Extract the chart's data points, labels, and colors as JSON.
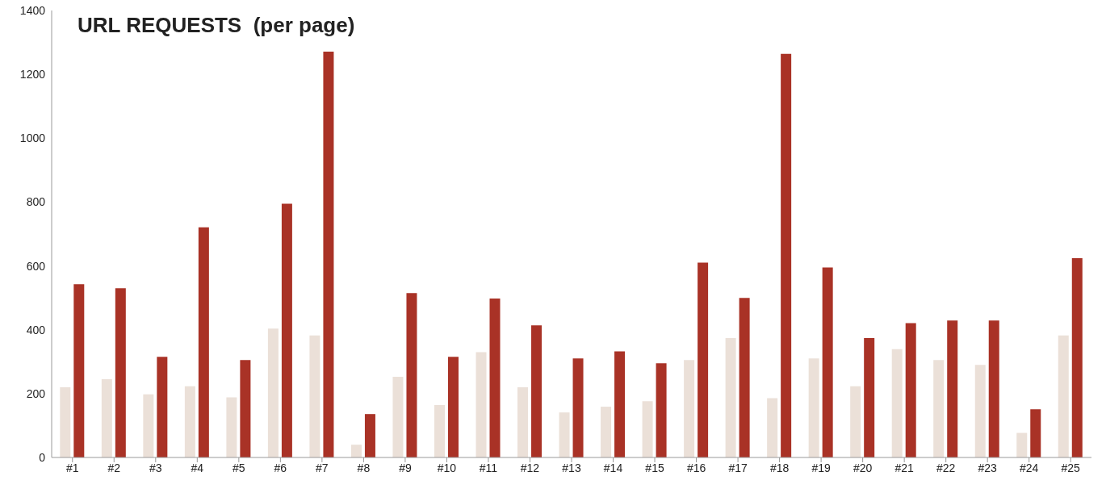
{
  "chart_data": {
    "type": "bar",
    "title": "URL REQUESTS  (per page)",
    "categories": [
      "#1",
      "#2",
      "#3",
      "#4",
      "#5",
      "#6",
      "#7",
      "#8",
      "#9",
      "#10",
      "#11",
      "#12",
      "#13",
      "#14",
      "#15",
      "#16",
      "#17",
      "#18",
      "#19",
      "#20",
      "#21",
      "#22",
      "#23",
      "#24",
      "#25"
    ],
    "series": [
      {
        "color": "#ebe0d8",
        "values": [
          220,
          245,
          198,
          223,
          188,
          404,
          382,
          40,
          253,
          164,
          330,
          220,
          141,
          159,
          176,
          305,
          374,
          186,
          310,
          223,
          339,
          305,
          290,
          77,
          382
        ]
      },
      {
        "color": "#a93226",
        "values": [
          543,
          530,
          315,
          721,
          305,
          795,
          1271,
          136,
          515,
          315,
          498,
          414,
          310,
          332,
          295,
          610,
          500,
          1264,
          595,
          374,
          421,
          429,
          429,
          151,
          624
        ]
      }
    ],
    "ylim": [
      0,
      1400
    ],
    "yticks": [
      0,
      200,
      400,
      600,
      800,
      1000,
      1200,
      1400
    ],
    "grid": false,
    "legend": false
  }
}
